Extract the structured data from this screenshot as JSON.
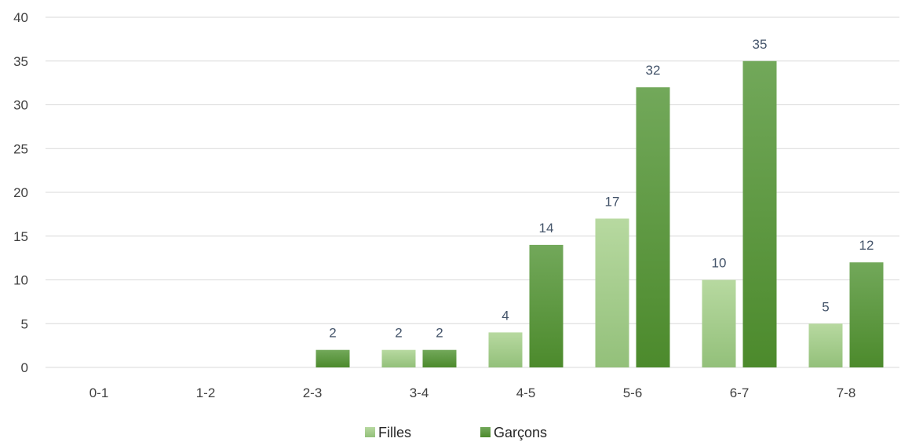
{
  "chart_data": {
    "type": "bar",
    "categories": [
      "0-1",
      "1-2",
      "2-3",
      "3-4",
      "4-5",
      "5-6",
      "6-7",
      "7-8"
    ],
    "series": [
      {
        "name": "Filles",
        "values": [
          0,
          0,
          0,
          2,
          4,
          17,
          10,
          5
        ],
        "color": "#a9d08e"
      },
      {
        "name": "Garçons",
        "values": [
          0,
          0,
          2,
          2,
          14,
          32,
          35,
          12
        ],
        "color": "#548235"
      }
    ],
    "title": "",
    "xlabel": "",
    "ylabel": "",
    "ylim": [
      0,
      40
    ],
    "yticks": [
      0,
      5,
      10,
      15,
      20,
      25,
      30,
      35,
      40
    ],
    "grid": true,
    "legend": "bottom",
    "data_labels": true
  }
}
